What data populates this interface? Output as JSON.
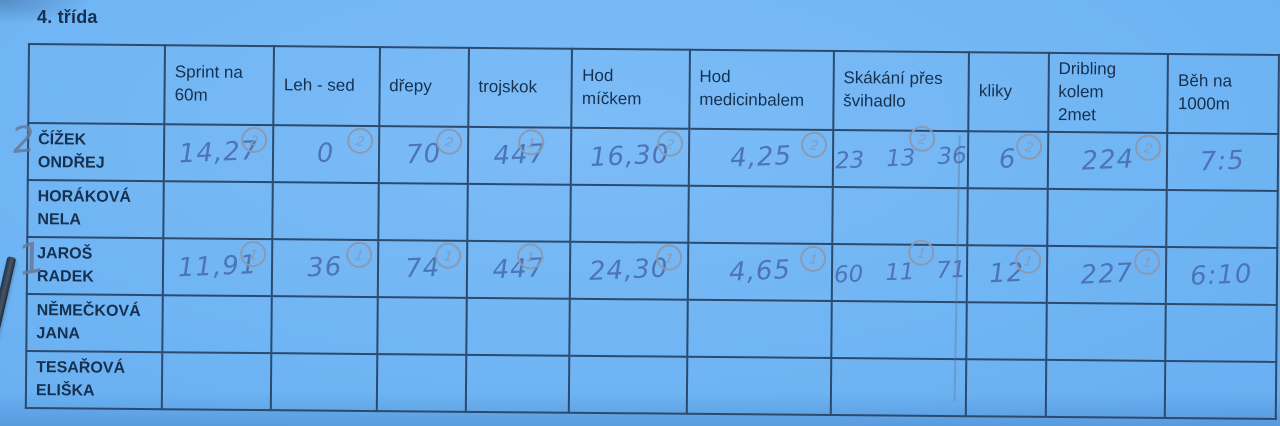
{
  "title": "4. třída",
  "colors": {
    "paper": "#6db3f3",
    "paper_hi": "#7cbcf7",
    "paper_lo": "#61a9ee",
    "paper_dk": "#57a0e8",
    "line": "#2b4a6e",
    "print": "#16304f",
    "ink": "#4d74b6",
    "pencil": "#8a9ab2"
  },
  "table": {
    "columns": [
      "",
      "Sprint na\n60m",
      "Leh - sed",
      "dřepy",
      "trojskok",
      "Hod\nmíčkem",
      "Hod\nmedicinbalem",
      "Skákání přes\nšvihadlo",
      "kliky",
      "Dribling\nkolem\n2met",
      "Běh na\n1000m"
    ],
    "rows": [
      {
        "name": "ČÍŽEK\nONDŘEJ",
        "margin_mark": "2",
        "cells": [
          {
            "value": "14,27",
            "rank": "2"
          },
          {
            "value": "0",
            "rank": "2"
          },
          {
            "value": "70",
            "rank": "2"
          },
          {
            "value": "447",
            "rank": "1"
          },
          {
            "value": "16,30",
            "rank": "2"
          },
          {
            "value": "4,25",
            "rank": "2"
          },
          {
            "value": "23   13   36",
            "rank": "2"
          },
          {
            "value": "6",
            "rank": "2"
          },
          {
            "value": "224",
            "rank": "2"
          },
          {
            "value": "7:5"
          }
        ]
      },
      {
        "name": "HORÁKOVÁ\nNELA",
        "cells": [
          {},
          {},
          {},
          {},
          {},
          {},
          {},
          {},
          {},
          {}
        ]
      },
      {
        "name": "JAROŠ\nRADEK",
        "margin_mark": "1",
        "cells": [
          {
            "value": "11,91",
            "rank": "1"
          },
          {
            "value": "36",
            "rank": "1"
          },
          {
            "value": "74",
            "rank": "1"
          },
          {
            "value": "447",
            "rank": "1"
          },
          {
            "value": "24,30",
            "rank": "1"
          },
          {
            "value": "4,65",
            "rank": "1"
          },
          {
            "value": "60   11   71",
            "rank": "1"
          },
          {
            "value": "12",
            "rank": "1"
          },
          {
            "value": "227",
            "rank": "1"
          },
          {
            "value": "6:10"
          }
        ]
      },
      {
        "name": "NĚMEČKOVÁ\nJANA",
        "cells": [
          {},
          {},
          {},
          {},
          {},
          {},
          {},
          {},
          {},
          {}
        ]
      },
      {
        "name": "TESAŘOVÁ\nELIŠKA",
        "cells": [
          {},
          {},
          {},
          {},
          {},
          {},
          {},
          {},
          {},
          {}
        ]
      }
    ]
  }
}
